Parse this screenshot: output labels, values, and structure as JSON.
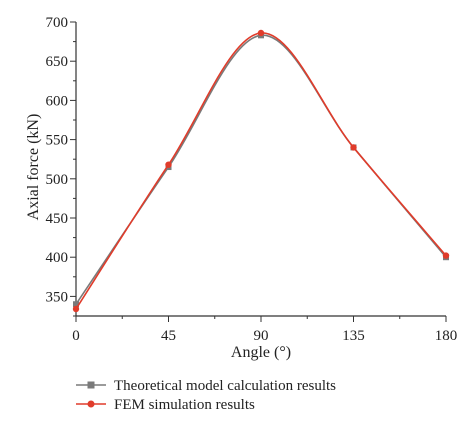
{
  "chart_data": {
    "type": "line",
    "xlabel": "Angle (°)",
    "ylabel": "Axial force (kN)",
    "xlim": [
      0,
      180
    ],
    "ylim": [
      325,
      700
    ],
    "x_ticks": [
      0,
      45,
      90,
      135,
      180
    ],
    "y_ticks": [
      350,
      400,
      450,
      500,
      550,
      600,
      650,
      700
    ],
    "x_tick_labels": [
      "0",
      "45",
      "90",
      "135",
      "180"
    ],
    "y_tick_labels": [
      "350",
      "400",
      "450",
      "500",
      "550",
      "600",
      "650",
      "700"
    ],
    "grid": false,
    "legend_position": "bottom",
    "series": [
      {
        "name": "Theoretical model calculation results",
        "color": "#7a7a7a",
        "marker": "square",
        "x": [
          0,
          45,
          90,
          135,
          180
        ],
        "y": [
          340,
          515,
          683,
          540,
          400
        ]
      },
      {
        "name": "FEM simulation results",
        "color": "#e03c2b",
        "marker": "circle",
        "x": [
          0,
          45,
          90,
          135,
          180
        ],
        "y": [
          334,
          518,
          686,
          540,
          402
        ]
      }
    ]
  }
}
